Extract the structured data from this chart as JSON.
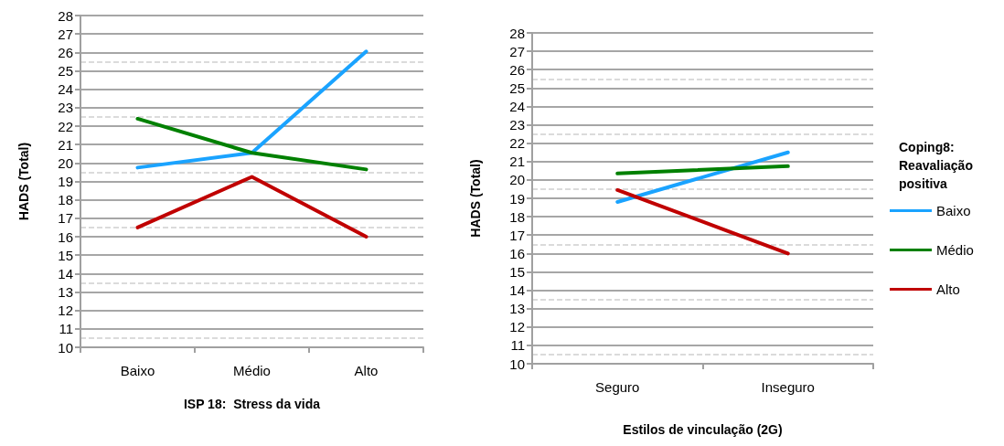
{
  "chart_data": [
    {
      "type": "line",
      "xlabel": "ISP 18:  Stress da vida",
      "ylabel": "HADS (Total)",
      "categories": [
        "Baixo",
        "Médio",
        "Alto"
      ],
      "ylim": [
        10,
        28
      ],
      "yticks": [
        10,
        11,
        12,
        13,
        14,
        15,
        16,
        17,
        18,
        19,
        20,
        21,
        22,
        23,
        24,
        25,
        26,
        27,
        28
      ],
      "grid": "y",
      "legend": false,
      "marker": "none",
      "line_style": "solid",
      "series": [
        {
          "color": "#1aa3ff",
          "values": [
            19.75,
            20.55,
            26.05
          ]
        },
        {
          "color": "#008000",
          "values": [
            22.4,
            20.55,
            19.65
          ]
        },
        {
          "color": "#c00000",
          "values": [
            16.5,
            19.25,
            16.0
          ]
        }
      ]
    },
    {
      "type": "line",
      "xlabel": "Estilos de vinculação (2G)",
      "ylabel": "HADS (Total)",
      "legend_title": "Coping8: Reavaliação positiva",
      "categories": [
        "Seguro",
        "Inseguro"
      ],
      "ylim": [
        10,
        28
      ],
      "yticks": [
        10,
        11,
        12,
        13,
        14,
        15,
        16,
        17,
        18,
        19,
        20,
        21,
        22,
        23,
        24,
        25,
        26,
        27,
        28
      ],
      "grid": "y",
      "legend": "right",
      "marker": "none",
      "line_style": "solid",
      "series": [
        {
          "name": "Baixo",
          "color": "#1aa3ff",
          "values": [
            18.8,
            21.5
          ]
        },
        {
          "name": "Médio",
          "color": "#008000",
          "values": [
            20.35,
            20.75
          ]
        },
        {
          "name": "Alto",
          "color": "#c00000",
          "values": [
            19.45,
            16.0
          ]
        }
      ]
    }
  ]
}
